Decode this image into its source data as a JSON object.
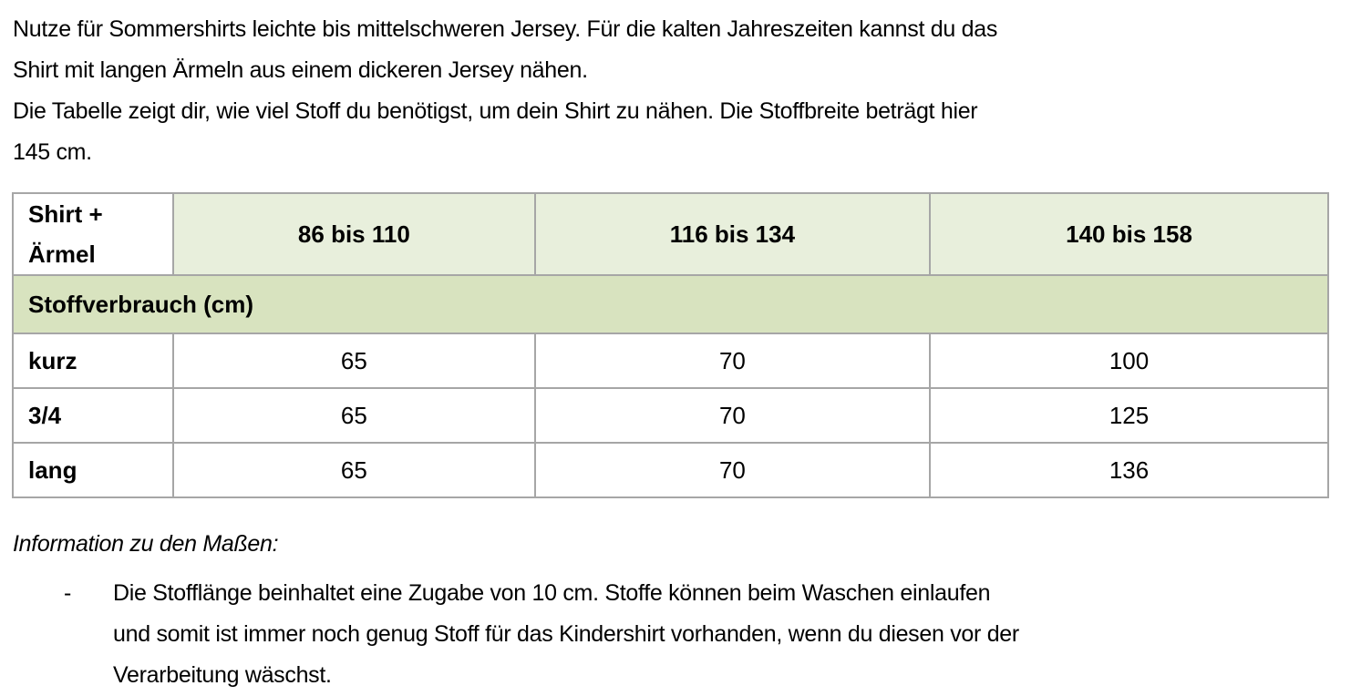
{
  "intro": {
    "line1": "Nutze für Sommershirts leichte bis mittelschweren Jersey. Für die kalten Jahreszeiten kannst du das",
    "line2": "Shirt mit langen Ärmeln aus einem dickeren Jersey nähen.",
    "line3": "Die Tabelle zeigt dir, wie viel Stoff du benötigst, um dein Shirt zu nähen. Die Stoffbreite beträgt hier",
    "line4": "145 cm."
  },
  "table": {
    "corner_line1": "Shirt +",
    "corner_line2": "Ärmel",
    "sizes": [
      "86 bis 110",
      "116 bis 134",
      "140 bis 158"
    ],
    "section_label": "Stoffverbrauch (cm)",
    "rows": [
      {
        "label": "kurz",
        "values": [
          "65",
          "70",
          "100"
        ]
      },
      {
        "label": "3/4",
        "values": [
          "65",
          "70",
          "125"
        ]
      },
      {
        "label": "lang",
        "values": [
          "65",
          "70",
          "136"
        ]
      }
    ],
    "colors": {
      "header_bg": "#e8efdc",
      "section_bg": "#d8e3bf",
      "border": "#a6a6a6"
    }
  },
  "info": {
    "title": "Information zu den Maßen:",
    "bullet": "-",
    "note_line1": "Die Stofflänge beinhaltet eine Zugabe von 10 cm. Stoffe können beim Waschen einlaufen",
    "note_line2": "und somit ist immer noch genug Stoff für das Kindershirt vorhanden, wenn du diesen vor der",
    "note_line3": "Verarbeitung wäschst."
  }
}
